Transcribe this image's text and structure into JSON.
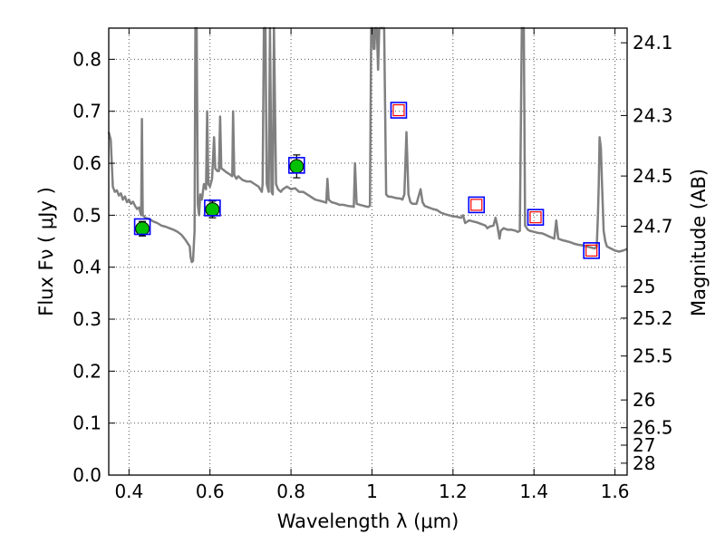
{
  "chart_data": {
    "type": "scatter",
    "xlabel": "Wavelength  λ (μm)",
    "ylabel": "Flux  Fν  ( μJy )",
    "y2label": "Magnitude (AB)",
    "xlim": [
      0.35,
      1.63
    ],
    "ylim": [
      0.0,
      0.86
    ],
    "grid": "dotted",
    "x_ticks": [
      {
        "value": 0.4,
        "label": "0.4"
      },
      {
        "value": 0.6,
        "label": "0.6"
      },
      {
        "value": 0.8,
        "label": "0.8"
      },
      {
        "value": 1.0,
        "label": "1"
      },
      {
        "value": 1.2,
        "label": "1.2"
      },
      {
        "value": 1.4,
        "label": "1.4"
      },
      {
        "value": 1.6,
        "label": "1.6"
      }
    ],
    "y_ticks": [
      {
        "value": 0.0,
        "label": "0.0"
      },
      {
        "value": 0.1,
        "label": "0.1"
      },
      {
        "value": 0.2,
        "label": "0.2"
      },
      {
        "value": 0.3,
        "label": "0.3"
      },
      {
        "value": 0.4,
        "label": "0.4"
      },
      {
        "value": 0.5,
        "label": "0.5"
      },
      {
        "value": 0.6,
        "label": "0.6"
      },
      {
        "value": 0.7,
        "label": "0.7"
      },
      {
        "value": 0.8,
        "label": "0.8"
      }
    ],
    "magnitude_ticks": [
      {
        "mag": 24.1,
        "label": "24.1"
      },
      {
        "mag": 24.3,
        "label": "24.3"
      },
      {
        "mag": 24.5,
        "label": "24.5"
      },
      {
        "mag": 24.7,
        "label": "24.7"
      },
      {
        "mag": 25.0,
        "label": "25"
      },
      {
        "mag": 25.2,
        "label": "25.2"
      },
      {
        "mag": 25.5,
        "label": "25.5"
      },
      {
        "mag": 26.0,
        "label": "26"
      },
      {
        "mag": 26.5,
        "label": "26.5"
      },
      {
        "mag": 27.0,
        "label": "27"
      },
      {
        "mag": 28.0,
        "label": "28"
      }
    ],
    "model_spectrum": {
      "color": "#808080",
      "points": [
        [
          0.35,
          0.66
        ],
        [
          0.355,
          0.645
        ],
        [
          0.36,
          0.555
        ],
        [
          0.365,
          0.545
        ],
        [
          0.37,
          0.548
        ],
        [
          0.375,
          0.538
        ],
        [
          0.38,
          0.542
        ],
        [
          0.385,
          0.53
        ],
        [
          0.39,
          0.536
        ],
        [
          0.395,
          0.525
        ],
        [
          0.4,
          0.53
        ],
        [
          0.405,
          0.522
        ],
        [
          0.41,
          0.526
        ],
        [
          0.415,
          0.518
        ],
        [
          0.42,
          0.512
        ],
        [
          0.425,
          0.515
        ],
        [
          0.428,
          0.505
        ],
        [
          0.43,
          0.5
        ],
        [
          0.432,
          0.685
        ],
        [
          0.434,
          0.5
        ],
        [
          0.437,
          0.498
        ],
        [
          0.44,
          0.495
        ],
        [
          0.45,
          0.493
        ],
        [
          0.46,
          0.488
        ],
        [
          0.47,
          0.485
        ],
        [
          0.48,
          0.48
        ],
        [
          0.49,
          0.478
        ],
        [
          0.5,
          0.475
        ],
        [
          0.51,
          0.472
        ],
        [
          0.52,
          0.468
        ],
        [
          0.53,
          0.462
        ],
        [
          0.54,
          0.452
        ],
        [
          0.55,
          0.44
        ],
        [
          0.552,
          0.42
        ],
        [
          0.555,
          0.41
        ],
        [
          0.558,
          0.412
        ],
        [
          0.56,
          0.44
        ],
        [
          0.562,
          0.47
        ],
        [
          0.564,
          0.86
        ],
        [
          0.567,
          0.86
        ],
        [
          0.57,
          0.52
        ],
        [
          0.573,
          0.5
        ],
        [
          0.576,
          0.54
        ],
        [
          0.58,
          0.53
        ],
        [
          0.585,
          0.56
        ],
        [
          0.59,
          0.55
        ],
        [
          0.593,
          0.7
        ],
        [
          0.596,
          0.56
        ],
        [
          0.6,
          0.555
        ],
        [
          0.605,
          0.57
        ],
        [
          0.61,
          0.65
        ],
        [
          0.613,
          0.59
        ],
        [
          0.618,
          0.585
        ],
        [
          0.622,
          0.585
        ],
        [
          0.625,
          0.69
        ],
        [
          0.628,
          0.59
        ],
        [
          0.632,
          0.588
        ],
        [
          0.64,
          0.583
        ],
        [
          0.65,
          0.578
        ],
        [
          0.655,
          0.575
        ],
        [
          0.657,
          0.7
        ],
        [
          0.66,
          0.578
        ],
        [
          0.665,
          0.57
        ],
        [
          0.67,
          0.575
        ],
        [
          0.68,
          0.568
        ],
        [
          0.69,
          0.565
        ],
        [
          0.7,
          0.565
        ],
        [
          0.71,
          0.56
        ],
        [
          0.72,
          0.555
        ],
        [
          0.728,
          0.545
        ],
        [
          0.73,
          0.56
        ],
        [
          0.733,
          0.86
        ],
        [
          0.737,
          0.86
        ],
        [
          0.74,
          0.56
        ],
        [
          0.745,
          0.545
        ],
        [
          0.748,
          0.86
        ],
        [
          0.752,
          0.545
        ],
        [
          0.755,
          0.54
        ],
        [
          0.758,
          0.86
        ],
        [
          0.763,
          0.56
        ],
        [
          0.768,
          0.55
        ],
        [
          0.775,
          0.545
        ],
        [
          0.78,
          0.55
        ],
        [
          0.79,
          0.555
        ],
        [
          0.8,
          0.55
        ],
        [
          0.81,
          0.552
        ],
        [
          0.82,
          0.545
        ],
        [
          0.83,
          0.545
        ],
        [
          0.84,
          0.54
        ],
        [
          0.85,
          0.535
        ],
        [
          0.86,
          0.53
        ],
        [
          0.87,
          0.528
        ],
        [
          0.88,
          0.526
        ],
        [
          0.887,
          0.524
        ],
        [
          0.89,
          0.57
        ],
        [
          0.893,
          0.53
        ],
        [
          0.9,
          0.525
        ],
        [
          0.91,
          0.523
        ],
        [
          0.92,
          0.52
        ],
        [
          0.93,
          0.52
        ],
        [
          0.94,
          0.518
        ],
        [
          0.95,
          0.517
        ],
        [
          0.955,
          0.516
        ],
        [
          0.958,
          0.6
        ],
        [
          0.962,
          0.522
        ],
        [
          0.97,
          0.52
        ],
        [
          0.98,
          0.518
        ],
        [
          0.99,
          0.516
        ],
        [
          0.995,
          0.518
        ],
        [
          0.998,
          0.86
        ],
        [
          1.002,
          0.86
        ],
        [
          1.004,
          0.82
        ],
        [
          1.006,
          0.82
        ],
        [
          1.008,
          0.86
        ],
        [
          1.012,
          0.86
        ],
        [
          1.015,
          0.78
        ],
        [
          1.018,
          0.86
        ],
        [
          1.03,
          0.86
        ],
        [
          1.035,
          0.54
        ],
        [
          1.04,
          0.536
        ],
        [
          1.05,
          0.535
        ],
        [
          1.06,
          0.533
        ],
        [
          1.07,
          0.532
        ],
        [
          1.075,
          0.53
        ],
        [
          1.08,
          0.54
        ],
        [
          1.085,
          0.66
        ],
        [
          1.09,
          0.54
        ],
        [
          1.095,
          0.525
        ],
        [
          1.1,
          0.522
        ],
        [
          1.11,
          0.522
        ],
        [
          1.12,
          0.55
        ],
        [
          1.125,
          0.525
        ],
        [
          1.13,
          0.518
        ],
        [
          1.14,
          0.515
        ],
        [
          1.15,
          0.512
        ],
        [
          1.16,
          0.51
        ],
        [
          1.17,
          0.505
        ],
        [
          1.18,
          0.502
        ],
        [
          1.19,
          0.5
        ],
        [
          1.2,
          0.498
        ],
        [
          1.21,
          0.497
        ],
        [
          1.22,
          0.495
        ],
        [
          1.225,
          0.5
        ],
        [
          1.23,
          0.485
        ],
        [
          1.24,
          0.49
        ],
        [
          1.25,
          0.488
        ],
        [
          1.26,
          0.486
        ],
        [
          1.27,
          0.483
        ],
        [
          1.28,
          0.48
        ],
        [
          1.285,
          0.475
        ],
        [
          1.29,
          0.478
        ],
        [
          1.3,
          0.48
        ],
        [
          1.305,
          0.495
        ],
        [
          1.31,
          0.478
        ],
        [
          1.315,
          0.455
        ],
        [
          1.318,
          0.47
        ],
        [
          1.325,
          0.475
        ],
        [
          1.335,
          0.472
        ],
        [
          1.345,
          0.472
        ],
        [
          1.355,
          0.47
        ],
        [
          1.36,
          0.468
        ],
        [
          1.365,
          0.47
        ],
        [
          1.37,
          0.86
        ],
        [
          1.375,
          0.86
        ],
        [
          1.378,
          0.48
        ],
        [
          1.385,
          0.472
        ],
        [
          1.39,
          0.47
        ],
        [
          1.4,
          0.468
        ],
        [
          1.41,
          0.466
        ],
        [
          1.42,
          0.465
        ],
        [
          1.43,
          0.462
        ],
        [
          1.44,
          0.458
        ],
        [
          1.45,
          0.455
        ],
        [
          1.455,
          0.49
        ],
        [
          1.46,
          0.455
        ],
        [
          1.47,
          0.452
        ],
        [
          1.48,
          0.45
        ],
        [
          1.49,
          0.448
        ],
        [
          1.5,
          0.445
        ],
        [
          1.51,
          0.443
        ],
        [
          1.52,
          0.442
        ],
        [
          1.53,
          0.44
        ],
        [
          1.54,
          0.438
        ],
        [
          1.55,
          0.436
        ],
        [
          1.555,
          0.44
        ],
        [
          1.558,
          0.5
        ],
        [
          1.56,
          0.56
        ],
        [
          1.562,
          0.65
        ],
        [
          1.565,
          0.63
        ],
        [
          1.568,
          0.56
        ],
        [
          1.572,
          0.47
        ],
        [
          1.576,
          0.45
        ],
        [
          1.58,
          0.44
        ],
        [
          1.59,
          0.436
        ],
        [
          1.6,
          0.432
        ],
        [
          1.61,
          0.43
        ],
        [
          1.62,
          0.432
        ],
        [
          1.63,
          0.435
        ]
      ]
    },
    "observed_points": [
      {
        "x": 0.433,
        "y": 0.474,
        "err": 0.014
      },
      {
        "x": 0.606,
        "y": 0.511,
        "err": 0.016
      },
      {
        "x": 0.814,
        "y": 0.594,
        "err": 0.022
      }
    ],
    "model_band_points": [
      {
        "x": 0.433,
        "y": 0.478,
        "kind": "optical"
      },
      {
        "x": 0.606,
        "y": 0.514,
        "kind": "optical"
      },
      {
        "x": 0.814,
        "y": 0.596,
        "kind": "optical"
      },
      {
        "x": 1.066,
        "y": 0.702,
        "kind": "nir"
      },
      {
        "x": 1.258,
        "y": 0.52,
        "kind": "nir"
      },
      {
        "x": 1.404,
        "y": 0.496,
        "kind": "nir"
      },
      {
        "x": 1.542,
        "y": 0.432,
        "kind": "nir"
      }
    ],
    "colors": {
      "spectrum": "#808080",
      "observed_fill": "#00c000",
      "model_square": "#0000ff",
      "nir_inner_square": "#ff0000",
      "grid": "#555555"
    }
  }
}
